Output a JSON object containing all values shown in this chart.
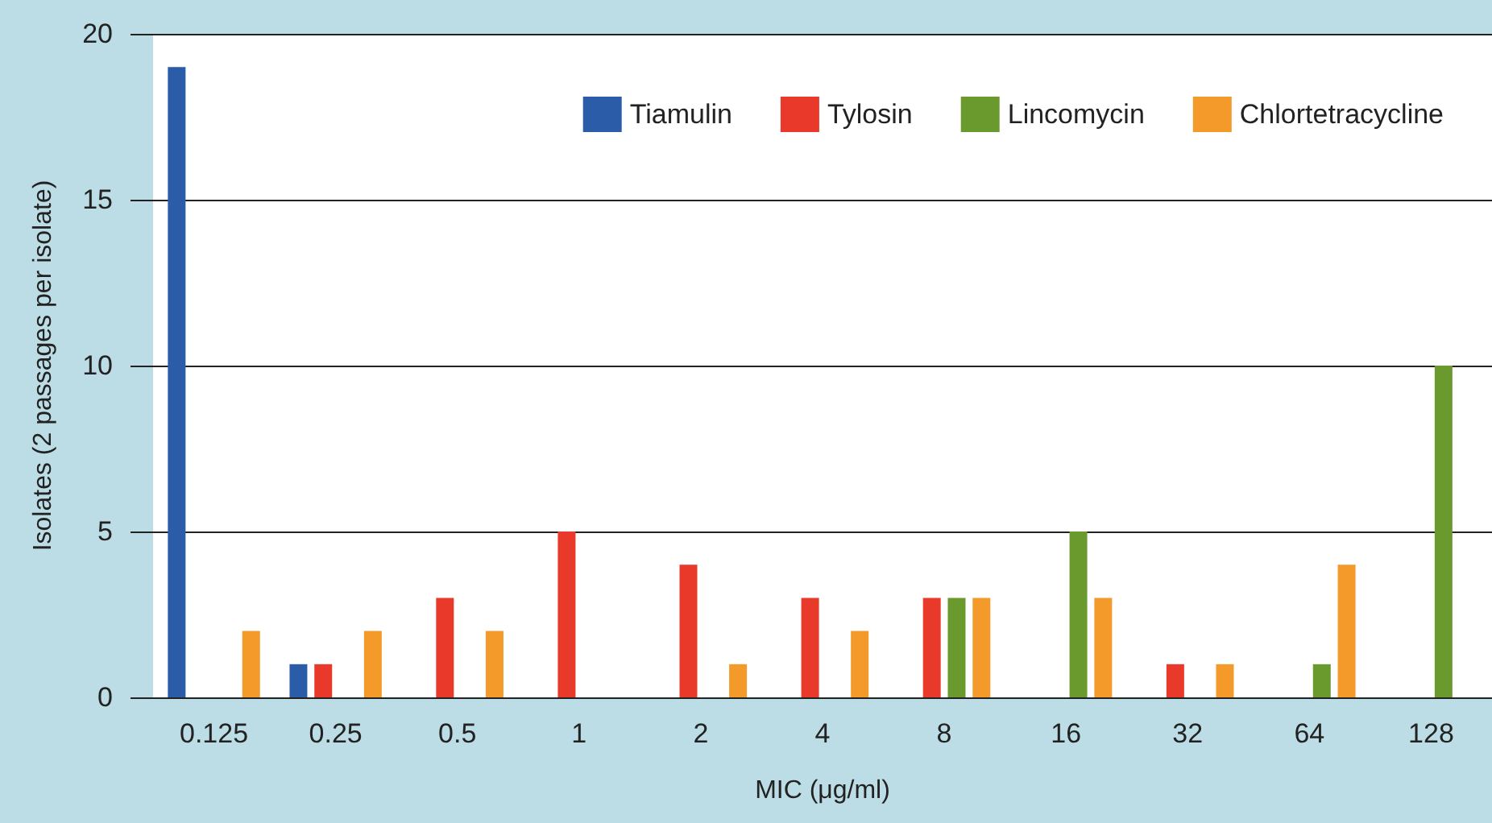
{
  "chart_data": {
    "type": "bar",
    "xlabel": "MIC (μg/ml)",
    "ylabel": "Isolates (2 passages per isolate)",
    "categories": [
      "0.125",
      "0.25",
      "0.5",
      "1",
      "2",
      "4",
      "8",
      "16",
      "32",
      "64",
      "128"
    ],
    "series": [
      {
        "name": "Tiamulin",
        "color": "#2a5ca8",
        "values": [
          19,
          1,
          0,
          0,
          0,
          0,
          0,
          0,
          0,
          0,
          0
        ]
      },
      {
        "name": "Tylosin",
        "color": "#e8392b",
        "values": [
          0,
          1,
          3,
          5,
          4,
          3,
          3,
          0,
          1,
          0,
          0
        ]
      },
      {
        "name": "Lincomycin",
        "color": "#6a9a2e",
        "values": [
          0,
          0,
          0,
          0,
          0,
          0,
          3,
          5,
          0,
          1,
          10
        ]
      },
      {
        "name": "Chlortetracycline",
        "color": "#f39a2b",
        "values": [
          2,
          2,
          2,
          0,
          1,
          2,
          3,
          3,
          1,
          4,
          0
        ]
      }
    ],
    "ylim": [
      0,
      20
    ],
    "yticks": [
      0,
      5,
      10,
      15,
      20
    ],
    "grid": "y",
    "legend": "top right"
  }
}
